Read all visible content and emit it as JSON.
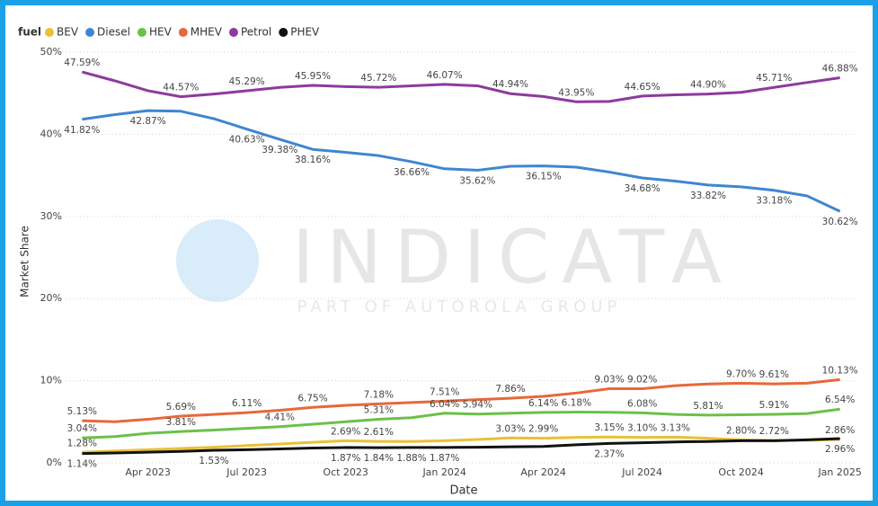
{
  "chart_data": {
    "type": "line",
    "legend_title": "fuel",
    "x_label": "Date",
    "y_label": "Market Share",
    "watermark": "INDICATA",
    "watermark_sub": "PART OF AUTOROLA GROUP",
    "categories": [
      null,
      null,
      "Apr 2023",
      null,
      null,
      "Jul 2023",
      null,
      null,
      "Oct 2023",
      null,
      null,
      "Jan 2024",
      null,
      null,
      "Apr 2024",
      null,
      null,
      "Jul 2024",
      null,
      null,
      "Oct 2024",
      null,
      null,
      "Jan 2025"
    ],
    "ylim": [
      0,
      50
    ],
    "yticks": [
      {
        "value": 0,
        "label": "0%"
      },
      {
        "value": 10,
        "label": "10%"
      },
      {
        "value": 20,
        "label": "20%"
      },
      {
        "value": 30,
        "label": "30%"
      },
      {
        "value": 40,
        "label": "40%"
      },
      {
        "value": 50,
        "label": "50%"
      }
    ],
    "grid": true,
    "series": [
      {
        "name": "BEV",
        "color": "#e8c136",
        "values": [
          1.28,
          1.45,
          1.6,
          1.75,
          1.9,
          2.1,
          2.3,
          2.5,
          2.69,
          2.61,
          2.6,
          2.7,
          2.85,
          3.03,
          2.99,
          3.1,
          3.15,
          3.1,
          3.13,
          3.0,
          2.8,
          2.72,
          2.75,
          2.86
        ],
        "value_labels": [
          "1.28%",
          null,
          null,
          null,
          null,
          null,
          null,
          null,
          "2.69%",
          "2.61%",
          null,
          null,
          null,
          "3.03%",
          "2.99%",
          null,
          "3.15%",
          "3.10%",
          "3.13%",
          null,
          "2.80%",
          "2.72%",
          null,
          "2.86%"
        ]
      },
      {
        "name": "Diesel",
        "color": "#3f86d0",
        "values": [
          41.82,
          42.4,
          42.87,
          42.8,
          41.9,
          40.63,
          39.38,
          38.16,
          37.8,
          37.4,
          36.66,
          35.8,
          35.62,
          36.1,
          36.15,
          36.0,
          35.4,
          34.68,
          34.3,
          33.82,
          33.6,
          33.18,
          32.5,
          30.62
        ],
        "value_labels": [
          "41.82%",
          null,
          "42.87%",
          null,
          null,
          "40.63%",
          "39.38%",
          "38.16%",
          null,
          null,
          "36.66%",
          null,
          "35.62%",
          null,
          "36.15%",
          null,
          null,
          "34.68%",
          null,
          "33.82%",
          null,
          "33.18%",
          null,
          "30.62%"
        ]
      },
      {
        "name": "HEV",
        "color": "#6cc04a",
        "values": [
          3.04,
          3.2,
          3.6,
          3.81,
          4.0,
          4.2,
          4.41,
          4.7,
          5.0,
          5.31,
          5.5,
          6.04,
          5.94,
          6.05,
          6.14,
          6.18,
          6.15,
          6.08,
          5.9,
          5.81,
          5.85,
          5.91,
          6.0,
          6.54
        ],
        "value_labels": [
          "3.04%",
          null,
          null,
          "3.81%",
          null,
          null,
          "4.41%",
          null,
          null,
          "5.31%",
          null,
          "6.04%",
          "5.94%",
          null,
          "6.14%",
          "6.18%",
          null,
          "6.08%",
          null,
          "5.81%",
          null,
          "5.91%",
          null,
          "6.54%"
        ]
      },
      {
        "name": "MHEV",
        "color": "#e8683a",
        "values": [
          5.13,
          5.0,
          5.3,
          5.69,
          5.9,
          6.11,
          6.4,
          6.75,
          7.0,
          7.18,
          7.35,
          7.51,
          7.7,
          7.86,
          8.1,
          8.5,
          9.03,
          9.02,
          9.4,
          9.6,
          9.7,
          9.61,
          9.7,
          10.13
        ],
        "value_labels": [
          "5.13%",
          null,
          null,
          "5.69%",
          null,
          "6.11%",
          null,
          "6.75%",
          null,
          "7.18%",
          null,
          "7.51%",
          null,
          "7.86%",
          null,
          null,
          "9.03%",
          "9.02%",
          null,
          null,
          "9.70%",
          "9.61%",
          null,
          "10.13%"
        ]
      },
      {
        "name": "Petrol",
        "color": "#8e3a9e",
        "values": [
          47.59,
          46.5,
          45.3,
          44.57,
          44.9,
          45.29,
          45.7,
          45.95,
          45.8,
          45.72,
          45.9,
          46.07,
          45.9,
          44.94,
          44.6,
          43.95,
          44.0,
          44.65,
          44.8,
          44.9,
          45.1,
          45.71,
          46.3,
          46.88
        ],
        "value_labels": [
          "47.59%",
          null,
          null,
          "44.57%",
          null,
          "45.29%",
          null,
          "45.95%",
          null,
          "45.72%",
          null,
          "46.07%",
          null,
          "44.94%",
          null,
          "43.95%",
          null,
          "44.65%",
          null,
          "44.90%",
          null,
          "45.71%",
          null,
          "46.88%"
        ]
      },
      {
        "name": "PHEV",
        "color": "#111111",
        "values": [
          1.14,
          1.2,
          1.3,
          1.4,
          1.53,
          1.6,
          1.7,
          1.8,
          1.87,
          1.84,
          1.88,
          1.87,
          1.9,
          1.95,
          2.0,
          2.2,
          2.37,
          2.45,
          2.55,
          2.6,
          2.7,
          2.7,
          2.8,
          2.96
        ],
        "value_labels": [
          "1.14%",
          null,
          null,
          null,
          "1.53%",
          null,
          null,
          null,
          "1.87%",
          "1.84%",
          "1.88%",
          "1.87%",
          null,
          null,
          null,
          null,
          "2.37%",
          null,
          null,
          null,
          null,
          null,
          null,
          "2.96%"
        ]
      }
    ]
  }
}
